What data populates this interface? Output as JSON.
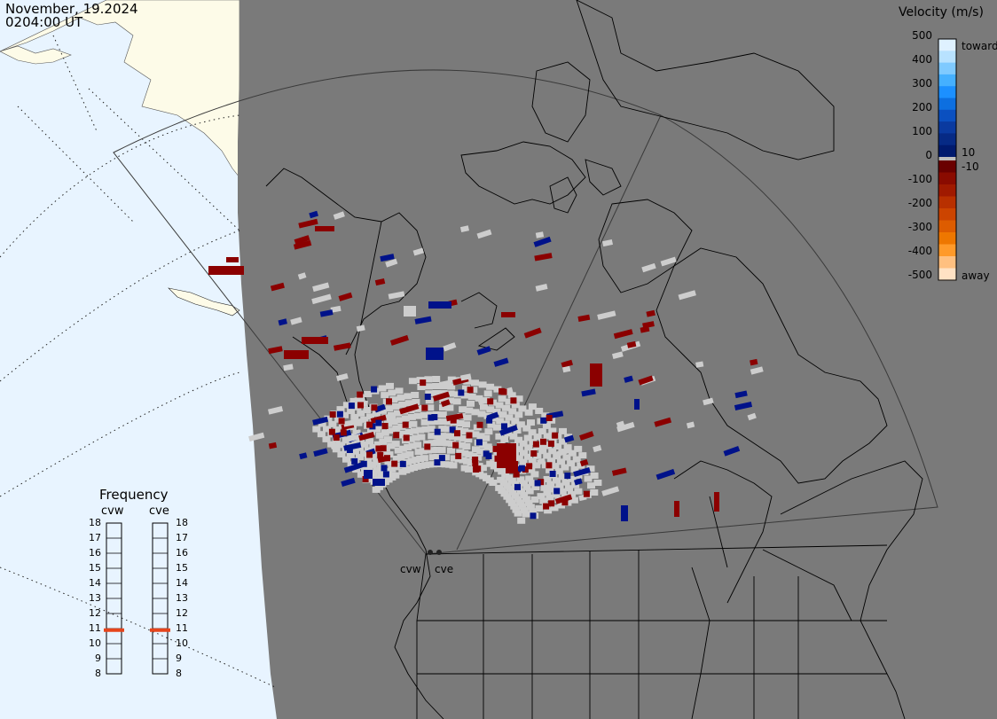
{
  "timestamp": {
    "date": "November, 19.2024",
    "time": "0204:00 UT"
  },
  "colorbar": {
    "title": "Velocity (m/s)",
    "ticks": [
      "500",
      "400",
      "300",
      "200",
      "100",
      "10",
      "0",
      "-10",
      "-100",
      "-200",
      "-300",
      "-400",
      "-500"
    ],
    "toward_label": "toward",
    "away_label": "away",
    "colors_toward": [
      "#dff1ff",
      "#b8e2ff",
      "#7fcaff",
      "#45b0ff",
      "#1c90ff",
      "#0d6fe0",
      "#0b50c0",
      "#0a3aa0",
      "#062a85",
      "#001a6e"
    ],
    "colors_away": [
      "#6a0000",
      "#8a0b00",
      "#a01a00",
      "#b83000",
      "#cc4400",
      "#dd5c00",
      "#ee7700",
      "#ff9a2a",
      "#ffc080",
      "#ffe2c4"
    ],
    "zero_color": "#bdbdbd"
  },
  "frequency": {
    "title": "Frequency",
    "scale": [
      "18",
      "17",
      "16",
      "15",
      "14",
      "13",
      "12",
      "11",
      "10",
      "9",
      "8"
    ],
    "radars": [
      {
        "name": "cvw",
        "value_mhz": 10.9
      },
      {
        "name": "cve",
        "value_mhz": 10.9
      }
    ]
  },
  "sites": [
    "cvw",
    "cve"
  ],
  "colors": {
    "land": "#7a7a7a",
    "ocean": "#e8f4ff",
    "ice": "#fdfbe8",
    "gnd_scatter": "#cdcdcd",
    "away": "#8b0000",
    "toward": "#00128a"
  }
}
